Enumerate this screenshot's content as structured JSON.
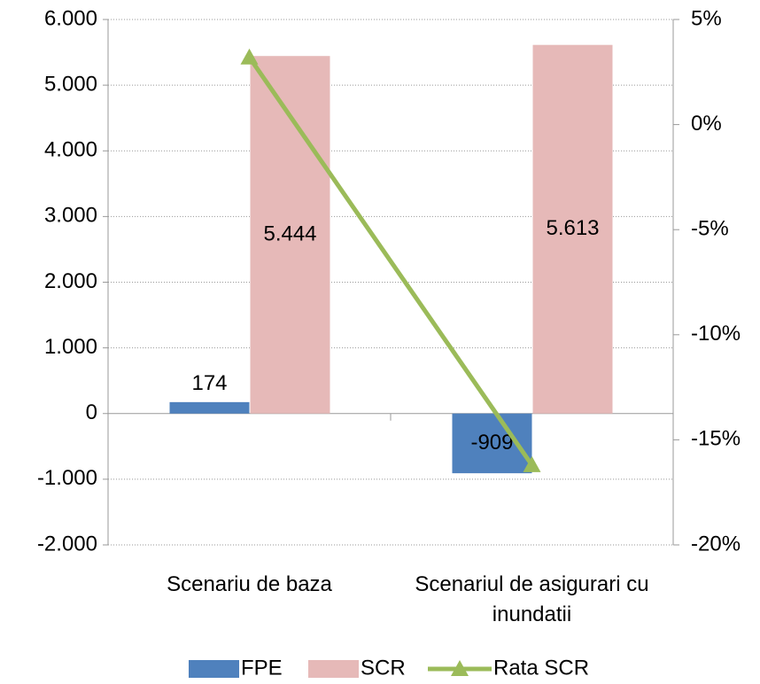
{
  "chart_data": {
    "type": "bar",
    "categories": [
      "Scenariu de baza",
      "Scenariul de asigurari cu inundatii"
    ],
    "series": [
      {
        "name": "FPE",
        "color": "#4f81bd",
        "values": [
          174,
          -909
        ]
      },
      {
        "name": "SCR",
        "color": "#e6b9b8",
        "values": [
          5444,
          5613
        ],
        "value_labels": [
          "5.444",
          "5.613"
        ]
      },
      {
        "name": "Rata SCR",
        "type": "line",
        "axis": "y2",
        "color": "#9bbb59",
        "values": [
          3.2,
          -16.2
        ]
      }
    ],
    "ylim": [
      -2000,
      6000
    ],
    "yticks": [
      {
        "value": -2000,
        "label": "-2.000"
      },
      {
        "value": -1000,
        "label": "-1.000"
      },
      0,
      {
        "value": 1000,
        "label": "1.000"
      },
      {
        "value": 2000,
        "label": "2.000"
      },
      {
        "value": 3000,
        "label": "3.000"
      },
      {
        "value": 4000,
        "label": "4.000"
      },
      {
        "value": 5000,
        "label": "5.000"
      },
      {
        "value": 6000,
        "label": "6.000"
      }
    ],
    "y2lim": [
      -20,
      5
    ],
    "y2ticks": [
      {
        "value": -20,
        "label": "-20%"
      },
      {
        "value": -15,
        "label": "-15%"
      },
      {
        "value": -10,
        "label": "-10%"
      },
      {
        "value": -5,
        "label": "-5%"
      },
      {
        "value": 0,
        "label": "0%"
      },
      {
        "value": 5,
        "label": "5%"
      }
    ],
    "grid": true,
    "legend": "bottom"
  }
}
